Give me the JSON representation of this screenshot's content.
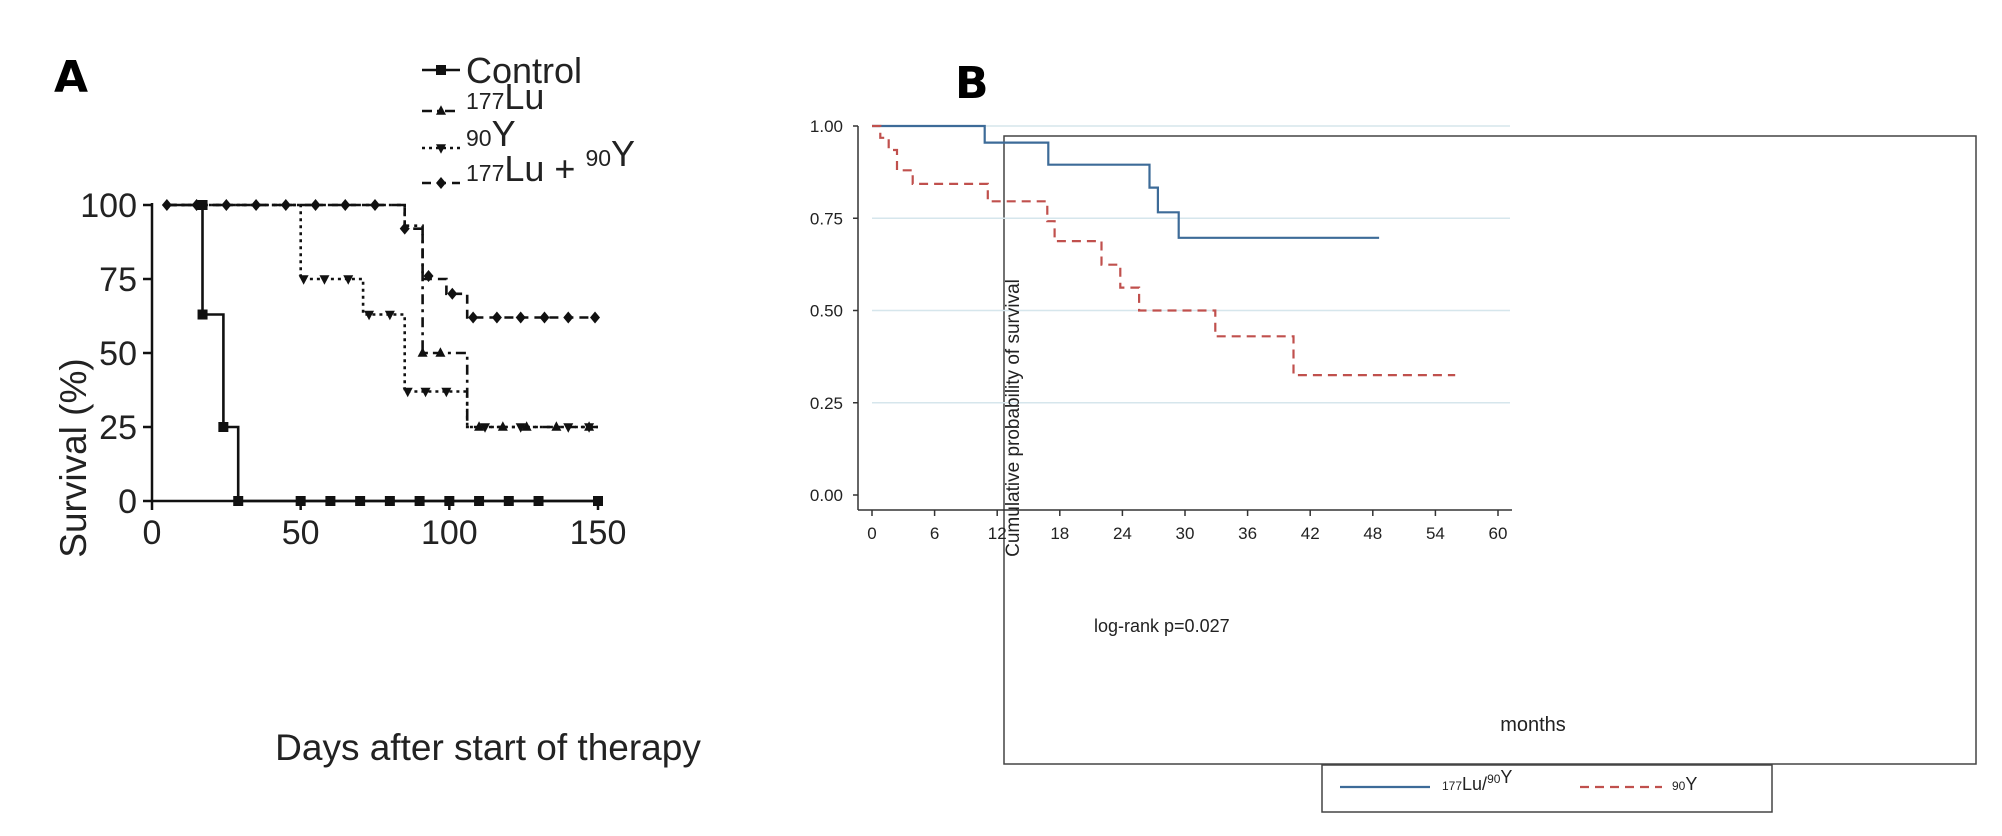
{
  "chart_data": [
    {
      "panel_label": "A",
      "type": "line",
      "subtype": "kaplan-meier step",
      "xlabel": "Days after start of therapy",
      "ylabel": "Survival (%)",
      "xlim": [
        0,
        150
      ],
      "ylim": [
        0,
        100
      ],
      "xticks": [
        0,
        50,
        100,
        150
      ],
      "yticks": [
        0,
        25,
        50,
        75,
        100
      ],
      "grid": false,
      "legend_position": "top-right",
      "series": [
        {
          "name": "Control",
          "name_parts": [
            [
              "Control",
              ""
            ]
          ],
          "line_style": "solid",
          "marker": "square",
          "steps": [
            [
              5,
              100
            ],
            [
              17,
              100
            ],
            [
              17,
              63
            ],
            [
              24,
              63
            ],
            [
              24,
              25
            ],
            [
              29,
              25
            ],
            [
              29,
              0
            ],
            [
              150,
              0
            ]
          ],
          "markers": [
            [
              17,
              100
            ],
            [
              17,
              63
            ],
            [
              24,
              25
            ],
            [
              29,
              0
            ],
            [
              50,
              0
            ],
            [
              60,
              0
            ],
            [
              70,
              0
            ],
            [
              80,
              0
            ],
            [
              90,
              0
            ],
            [
              100,
              0
            ],
            [
              110,
              0
            ],
            [
              120,
              0
            ],
            [
              130,
              0
            ],
            [
              150,
              0
            ]
          ]
        },
        {
          "name": "177Lu",
          "name_parts": [
            [
              "",
              "177"
            ],
            [
              "Lu",
              ""
            ]
          ],
          "line_style": "dashdot",
          "marker": "triangle-up",
          "steps": [
            [
              5,
              100
            ],
            [
              85,
              100
            ],
            [
              85,
              93
            ],
            [
              91,
              93
            ],
            [
              91,
              50
            ],
            [
              106,
              50
            ],
            [
              106,
              25
            ],
            [
              150,
              25
            ]
          ],
          "markers": [
            [
              91,
              50
            ],
            [
              97,
              50
            ],
            [
              110,
              25
            ],
            [
              118,
              25
            ],
            [
              126,
              25
            ],
            [
              136,
              25
            ],
            [
              147,
              25
            ]
          ]
        },
        {
          "name": "90Y",
          "name_parts": [
            [
              "",
              "90"
            ],
            [
              "Y",
              ""
            ]
          ],
          "line_style": "dotted",
          "marker": "triangle-down",
          "steps": [
            [
              5,
              100
            ],
            [
              50,
              100
            ],
            [
              50,
              75
            ],
            [
              71,
              75
            ],
            [
              71,
              63
            ],
            [
              85,
              63
            ],
            [
              85,
              37
            ],
            [
              106,
              37
            ],
            [
              106,
              25
            ],
            [
              150,
              25
            ]
          ],
          "markers": [
            [
              51,
              75
            ],
            [
              58,
              75
            ],
            [
              66,
              75
            ],
            [
              73,
              63
            ],
            [
              80,
              63
            ],
            [
              86,
              37
            ],
            [
              92,
              37
            ],
            [
              99,
              37
            ],
            [
              112,
              25
            ],
            [
              124,
              25
            ],
            [
              140,
              25
            ],
            [
              147,
              25
            ]
          ]
        },
        {
          "name": "177Lu + 90Y",
          "name_parts": [
            [
              "",
              "177"
            ],
            [
              "Lu + ",
              ""
            ],
            [
              "",
              "90"
            ],
            [
              "Y",
              ""
            ]
          ],
          "line_style": "dashed",
          "marker": "diamond",
          "steps": [
            [
              5,
              100
            ],
            [
              85,
              100
            ],
            [
              85,
              92
            ],
            [
              91,
              92
            ],
            [
              91,
              75
            ],
            [
              99,
              75
            ],
            [
              99,
              70
            ],
            [
              106,
              70
            ],
            [
              106,
              62
            ],
            [
              150,
              62
            ]
          ],
          "markers": [
            [
              5,
              100
            ],
            [
              15,
              100
            ],
            [
              25,
              100
            ],
            [
              35,
              100
            ],
            [
              45,
              100
            ],
            [
              55,
              100
            ],
            [
              65,
              100
            ],
            [
              75,
              100
            ],
            [
              85,
              92
            ],
            [
              93,
              76
            ],
            [
              101,
              70
            ],
            [
              108,
              62
            ],
            [
              116,
              62
            ],
            [
              124,
              62
            ],
            [
              132,
              62
            ],
            [
              140,
              62
            ],
            [
              149,
              62
            ]
          ]
        }
      ]
    },
    {
      "panel_label": "B",
      "type": "line",
      "subtype": "kaplan-meier step",
      "xlabel": "months",
      "ylabel": "Cumulative probability of survival",
      "xlim": [
        0,
        60
      ],
      "ylim": [
        0,
        1
      ],
      "xticks": [
        0,
        6,
        12,
        18,
        24,
        30,
        36,
        42,
        48,
        54,
        60
      ],
      "yticks": [
        0,
        0.25,
        0.5,
        0.75,
        1
      ],
      "ytick_labels": [
        "0.00",
        "0.25",
        "0.50",
        "0.75",
        "1.00"
      ],
      "grid": true,
      "annotation": "log-rank p=0.027",
      "legend_position": "bottom",
      "series": [
        {
          "name": "177Lu/90Y",
          "name_parts": [
            [
              "",
              "177"
            ],
            [
              "Lu/",
              ""
            ],
            [
              "",
              "90"
            ],
            [
              "Y",
              ""
            ]
          ],
          "color": "#3d6b98",
          "line_style": "solid",
          "steps": [
            [
              0,
              1
            ],
            [
              10.8,
              1
            ],
            [
              10.8,
              0.955
            ],
            [
              16.9,
              0.955
            ],
            [
              16.9,
              0.895
            ],
            [
              26.6,
              0.895
            ],
            [
              26.6,
              0.833
            ],
            [
              27.4,
              0.833
            ],
            [
              27.4,
              0.766
            ],
            [
              29.4,
              0.766
            ],
            [
              29.4,
              0.697
            ],
            [
              48.6,
              0.697
            ]
          ]
        },
        {
          "name": "90Y",
          "name_parts": [
            [
              "",
              "90"
            ],
            [
              "Y",
              ""
            ]
          ],
          "color": "#c0504d",
          "line_style": "dashed",
          "steps": [
            [
              0,
              1
            ],
            [
              0.8,
              1
            ],
            [
              0.8,
              0.968
            ],
            [
              1.6,
              0.968
            ],
            [
              1.6,
              0.935
            ],
            [
              2.4,
              0.935
            ],
            [
              2.4,
              0.88
            ],
            [
              3.9,
              0.88
            ],
            [
              3.9,
              0.843
            ],
            [
              11.1,
              0.843
            ],
            [
              11.1,
              0.796
            ],
            [
              16.8,
              0.796
            ],
            [
              16.8,
              0.742
            ],
            [
              17.5,
              0.742
            ],
            [
              17.5,
              0.688
            ],
            [
              22.0,
              0.688
            ],
            [
              22.0,
              0.624
            ],
            [
              23.8,
              0.624
            ],
            [
              23.8,
              0.562
            ],
            [
              25.6,
              0.562
            ],
            [
              25.6,
              0.5
            ],
            [
              32.9,
              0.5
            ],
            [
              32.9,
              0.43
            ],
            [
              40.4,
              0.43
            ],
            [
              40.4,
              0.325
            ],
            [
              55.9,
              0.325
            ]
          ]
        }
      ]
    }
  ]
}
